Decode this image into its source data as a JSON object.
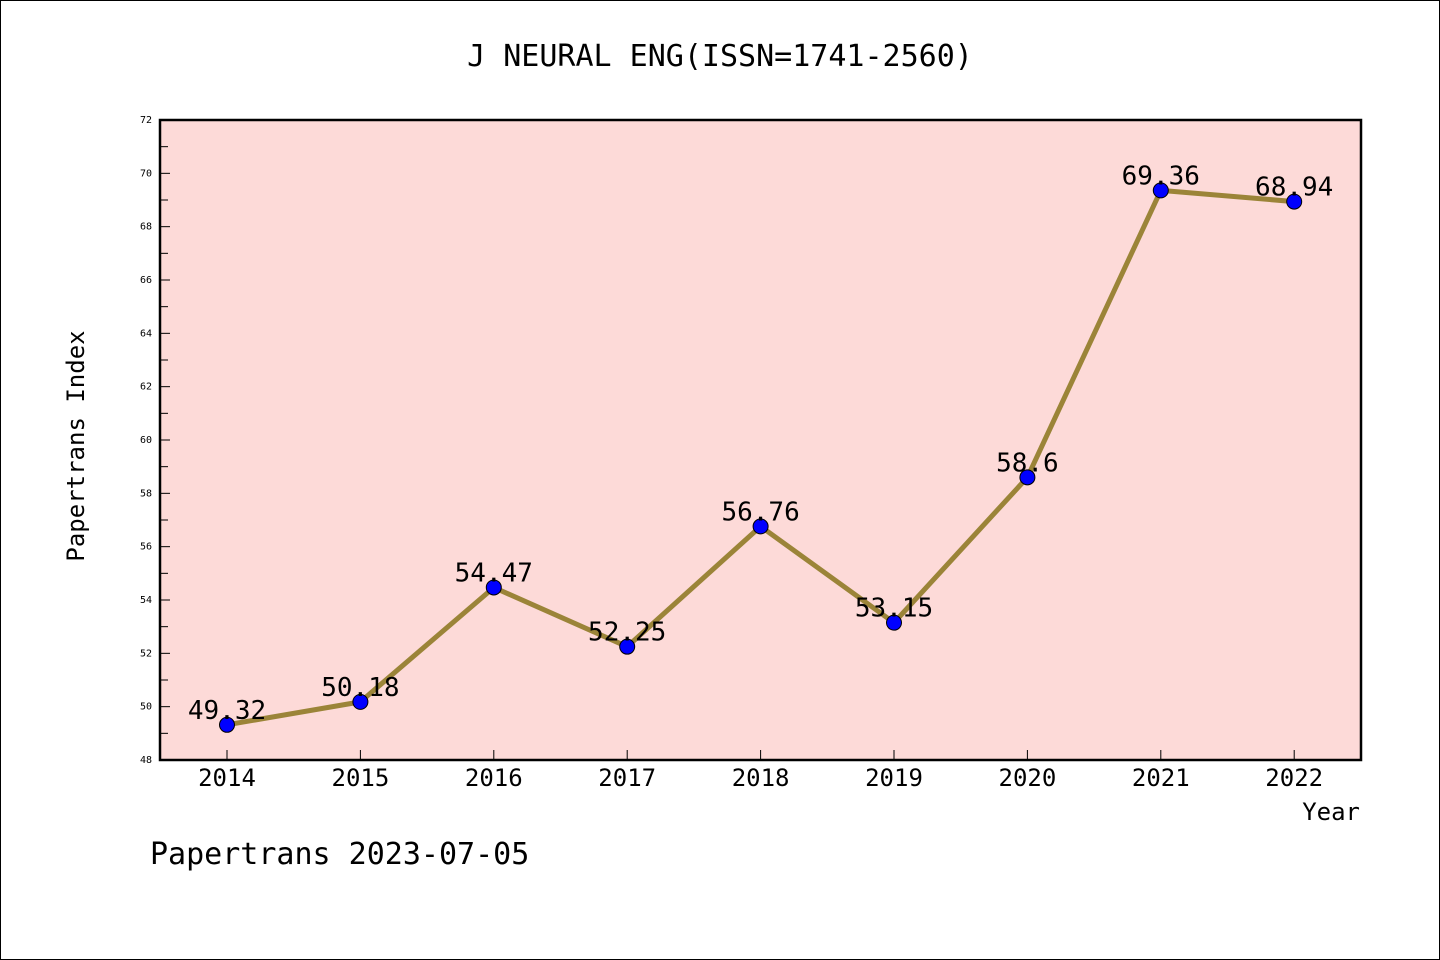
{
  "chart_data": {
    "type": "line",
    "title": "J NEURAL ENG(ISSN=1741-2560)",
    "xlabel": "Year",
    "ylabel": "Papertrans Index",
    "footer": "Papertrans 2023-07-05",
    "categories": [
      "2014",
      "2015",
      "2016",
      "2017",
      "2018",
      "2019",
      "2020",
      "2021",
      "2022"
    ],
    "values": [
      49.32,
      50.18,
      54.47,
      52.25,
      56.76,
      53.15,
      58.6,
      69.36,
      68.94
    ],
    "data_labels": [
      "49.32",
      "50.18",
      "54.47",
      "52.25",
      "56.76",
      "53.15",
      "58.6",
      "69.36",
      "68.94"
    ],
    "ylim": [
      48,
      72
    ],
    "yticks": [
      48,
      50,
      52,
      54,
      56,
      58,
      60,
      62,
      64,
      66,
      68,
      70,
      72
    ],
    "grid": false,
    "colors": {
      "plot_background": "#fddad8",
      "line": "#9b8438",
      "marker": "#0000ff"
    }
  }
}
